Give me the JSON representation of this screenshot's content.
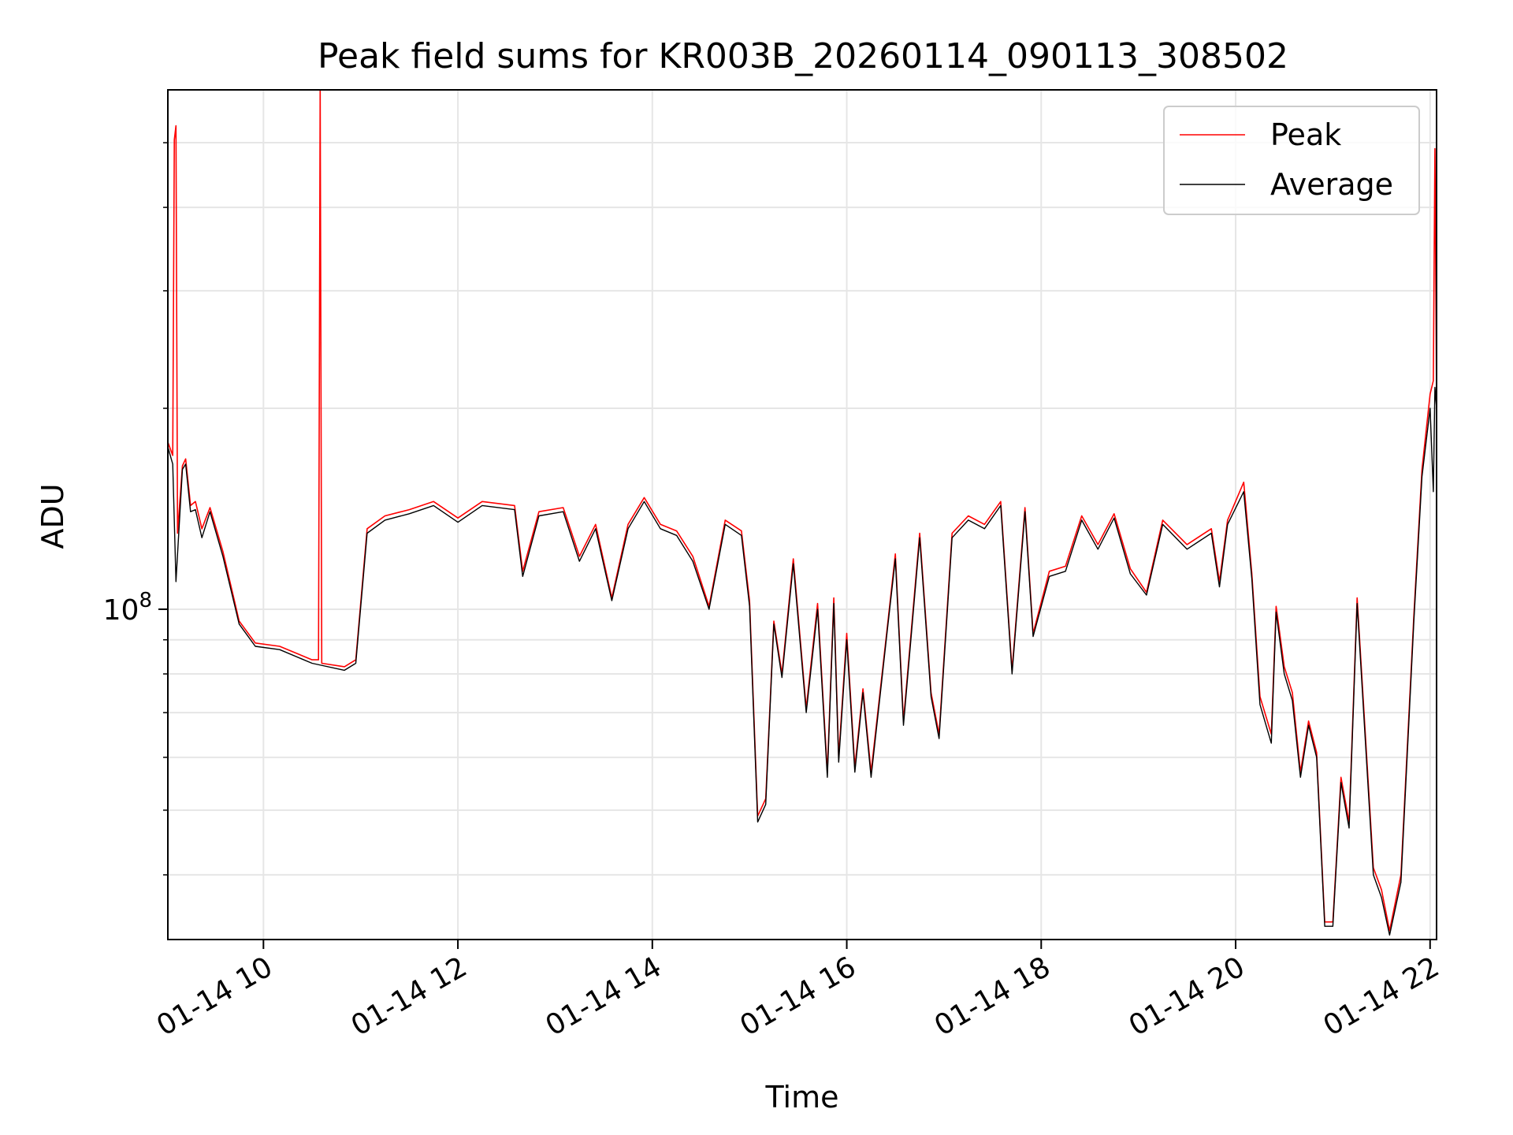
{
  "chart_data": {
    "type": "line",
    "title": "Peak field sums for KR003B_20260114_090113_308502",
    "xlabel": "Time",
    "ylabel": "ADU",
    "yscale": "log",
    "xlim": [
      "2026-01-14T09:01:00",
      "2026-01-14T22:04:00"
    ],
    "ylim": [
      32000000,
      600000000
    ],
    "xticks": [
      {
        "t": "2026-01-14T10:00",
        "label": "01-14 10"
      },
      {
        "t": "2026-01-14T12:00",
        "label": "01-14 12"
      },
      {
        "t": "2026-01-14T14:00",
        "label": "01-14 14"
      },
      {
        "t": "2026-01-14T16:00",
        "label": "01-14 16"
      },
      {
        "t": "2026-01-14T18:00",
        "label": "01-14 18"
      },
      {
        "t": "2026-01-14T20:00",
        "label": "01-14 20"
      },
      {
        "t": "2026-01-14T22:00",
        "label": "01-14 22"
      }
    ],
    "yticks_major": [
      {
        "value": 100000000,
        "label_base": "10",
        "label_exp": "8"
      }
    ],
    "yticks_minor": [
      40000000,
      50000000,
      60000000,
      70000000,
      80000000,
      90000000,
      200000000,
      300000000,
      400000000,
      500000000
    ],
    "grid": true,
    "legend": {
      "position": "top-right"
    },
    "series": [
      {
        "name": "Peak",
        "color": "#ff0000",
        "points": [
          [
            "2026-01-14T09:01",
            178000000
          ],
          [
            "2026-01-14T09:04",
            170000000
          ],
          [
            "2026-01-14T09:05",
            505000000
          ],
          [
            "2026-01-14T09:06",
            530000000
          ],
          [
            "2026-01-14T09:07",
            130000000
          ],
          [
            "2026-01-14T09:10",
            164000000
          ],
          [
            "2026-01-14T09:12",
            168000000
          ],
          [
            "2026-01-14T09:15",
            143000000
          ],
          [
            "2026-01-14T09:18",
            145000000
          ],
          [
            "2026-01-14T09:22",
            132000000
          ],
          [
            "2026-01-14T09:27",
            142000000
          ],
          [
            "2026-01-14T09:35",
            122000000
          ],
          [
            "2026-01-14T09:45",
            96000000
          ],
          [
            "2026-01-14T09:55",
            89000000
          ],
          [
            "2026-01-14T10:10",
            88000000
          ],
          [
            "2026-01-14T10:30",
            84000000
          ],
          [
            "2026-01-14T10:34",
            84000000
          ],
          [
            "2026-01-14T10:35",
            610000000
          ],
          [
            "2026-01-14T10:36",
            83000000
          ],
          [
            "2026-01-14T10:50",
            82000000
          ],
          [
            "2026-01-14T10:57",
            84000000
          ],
          [
            "2026-01-14T11:04",
            132000000
          ],
          [
            "2026-01-14T11:15",
            138000000
          ],
          [
            "2026-01-14T11:30",
            141000000
          ],
          [
            "2026-01-14T11:45",
            145000000
          ],
          [
            "2026-01-14T12:00",
            137000000
          ],
          [
            "2026-01-14T12:15",
            145000000
          ],
          [
            "2026-01-14T12:35",
            143000000
          ],
          [
            "2026-01-14T12:40",
            114000000
          ],
          [
            "2026-01-14T12:50",
            140000000
          ],
          [
            "2026-01-14T13:05",
            142000000
          ],
          [
            "2026-01-14T13:15",
            120000000
          ],
          [
            "2026-01-14T13:25",
            134000000
          ],
          [
            "2026-01-14T13:35",
            104000000
          ],
          [
            "2026-01-14T13:45",
            134000000
          ],
          [
            "2026-01-14T13:55",
            147000000
          ],
          [
            "2026-01-14T14:05",
            134000000
          ],
          [
            "2026-01-14T14:15",
            131000000
          ],
          [
            "2026-01-14T14:25",
            120000000
          ],
          [
            "2026-01-14T14:35",
            101000000
          ],
          [
            "2026-01-14T14:45",
            136000000
          ],
          [
            "2026-01-14T14:55",
            131000000
          ],
          [
            "2026-01-14T15:00",
            103000000
          ],
          [
            "2026-01-14T15:05",
            49000000
          ],
          [
            "2026-01-14T15:10",
            52000000
          ],
          [
            "2026-01-14T15:15",
            96000000
          ],
          [
            "2026-01-14T15:20",
            80000000
          ],
          [
            "2026-01-14T15:27",
            119000000
          ],
          [
            "2026-01-14T15:35",
            71000000
          ],
          [
            "2026-01-14T15:42",
            102000000
          ],
          [
            "2026-01-14T15:48",
            57000000
          ],
          [
            "2026-01-14T15:52",
            104000000
          ],
          [
            "2026-01-14T15:55",
            60000000
          ],
          [
            "2026-01-14T16:00",
            92000000
          ],
          [
            "2026-01-14T16:05",
            58000000
          ],
          [
            "2026-01-14T16:10",
            76000000
          ],
          [
            "2026-01-14T16:15",
            57000000
          ],
          [
            "2026-01-14T16:25",
            94000000
          ],
          [
            "2026-01-14T16:30",
            121000000
          ],
          [
            "2026-01-14T16:35",
            68000000
          ],
          [
            "2026-01-14T16:45",
            130000000
          ],
          [
            "2026-01-14T16:52",
            75000000
          ],
          [
            "2026-01-14T16:57",
            65000000
          ],
          [
            "2026-01-14T17:05",
            130000000
          ],
          [
            "2026-01-14T17:15",
            138000000
          ],
          [
            "2026-01-14T17:25",
            134000000
          ],
          [
            "2026-01-14T17:35",
            145000000
          ],
          [
            "2026-01-14T17:42",
            81000000
          ],
          [
            "2026-01-14T17:50",
            142000000
          ],
          [
            "2026-01-14T17:55",
            92000000
          ],
          [
            "2026-01-14T18:05",
            114000000
          ],
          [
            "2026-01-14T18:15",
            116000000
          ],
          [
            "2026-01-14T18:25",
            138000000
          ],
          [
            "2026-01-14T18:35",
            125000000
          ],
          [
            "2026-01-14T18:45",
            139000000
          ],
          [
            "2026-01-14T18:55",
            115000000
          ],
          [
            "2026-01-14T19:05",
            106000000
          ],
          [
            "2026-01-14T19:15",
            136000000
          ],
          [
            "2026-01-14T19:30",
            125000000
          ],
          [
            "2026-01-14T19:45",
            132000000
          ],
          [
            "2026-01-14T19:50",
            110000000
          ],
          [
            "2026-01-14T19:55",
            136000000
          ],
          [
            "2026-01-14T20:05",
            155000000
          ],
          [
            "2026-01-14T20:10",
            113000000
          ],
          [
            "2026-01-14T20:15",
            74000000
          ],
          [
            "2026-01-14T20:22",
            65000000
          ],
          [
            "2026-01-14T20:25",
            101000000
          ],
          [
            "2026-01-14T20:30",
            82000000
          ],
          [
            "2026-01-14T20:35",
            75000000
          ],
          [
            "2026-01-14T20:40",
            57000000
          ],
          [
            "2026-01-14T20:45",
            68000000
          ],
          [
            "2026-01-14T20:50",
            61000000
          ],
          [
            "2026-01-14T20:55",
            34000000
          ],
          [
            "2026-01-14T21:00",
            34000000
          ],
          [
            "2026-01-14T21:05",
            56000000
          ],
          [
            "2026-01-14T21:10",
            48000000
          ],
          [
            "2026-01-14T21:15",
            104000000
          ],
          [
            "2026-01-14T21:25",
            41000000
          ],
          [
            "2026-01-14T21:30",
            38000000
          ],
          [
            "2026-01-14T21:35",
            33000000
          ],
          [
            "2026-01-14T21:42",
            40000000
          ],
          [
            "2026-01-14T21:50",
            98000000
          ],
          [
            "2026-01-14T21:55",
            162000000
          ],
          [
            "2026-01-14T22:00",
            210000000
          ],
          [
            "2026-01-14T22:02",
            220000000
          ],
          [
            "2026-01-14T22:03",
            490000000
          ],
          [
            "2026-01-14T22:04",
            205000000
          ]
        ]
      },
      {
        "name": "Average",
        "color": "#000000",
        "points": [
          [
            "2026-01-14T09:01",
            175000000
          ],
          [
            "2026-01-14T09:04",
            165000000
          ],
          [
            "2026-01-14T09:06",
            110000000
          ],
          [
            "2026-01-14T09:10",
            162000000
          ],
          [
            "2026-01-14T09:12",
            165000000
          ],
          [
            "2026-01-14T09:15",
            140000000
          ],
          [
            "2026-01-14T09:18",
            141000000
          ],
          [
            "2026-01-14T09:22",
            128000000
          ],
          [
            "2026-01-14T09:27",
            140000000
          ],
          [
            "2026-01-14T09:35",
            120000000
          ],
          [
            "2026-01-14T09:45",
            95000000
          ],
          [
            "2026-01-14T09:55",
            88000000
          ],
          [
            "2026-01-14T10:10",
            87000000
          ],
          [
            "2026-01-14T10:30",
            83000000
          ],
          [
            "2026-01-14T10:50",
            81000000
          ],
          [
            "2026-01-14T10:57",
            83000000
          ],
          [
            "2026-01-14T11:04",
            130000000
          ],
          [
            "2026-01-14T11:15",
            136000000
          ],
          [
            "2026-01-14T11:30",
            139000000
          ],
          [
            "2026-01-14T11:45",
            143000000
          ],
          [
            "2026-01-14T12:00",
            135000000
          ],
          [
            "2026-01-14T12:15",
            143000000
          ],
          [
            "2026-01-14T12:35",
            141000000
          ],
          [
            "2026-01-14T12:40",
            112000000
          ],
          [
            "2026-01-14T12:50",
            138000000
          ],
          [
            "2026-01-14T13:05",
            140000000
          ],
          [
            "2026-01-14T13:15",
            118000000
          ],
          [
            "2026-01-14T13:25",
            132000000
          ],
          [
            "2026-01-14T13:35",
            103000000
          ],
          [
            "2026-01-14T13:45",
            132000000
          ],
          [
            "2026-01-14T13:55",
            145000000
          ],
          [
            "2026-01-14T14:05",
            132000000
          ],
          [
            "2026-01-14T14:15",
            129000000
          ],
          [
            "2026-01-14T14:25",
            118000000
          ],
          [
            "2026-01-14T14:35",
            100000000
          ],
          [
            "2026-01-14T14:45",
            134000000
          ],
          [
            "2026-01-14T14:55",
            129000000
          ],
          [
            "2026-01-14T15:00",
            101000000
          ],
          [
            "2026-01-14T15:05",
            48000000
          ],
          [
            "2026-01-14T15:10",
            51000000
          ],
          [
            "2026-01-14T15:15",
            95000000
          ],
          [
            "2026-01-14T15:20",
            79000000
          ],
          [
            "2026-01-14T15:27",
            117000000
          ],
          [
            "2026-01-14T15:35",
            70000000
          ],
          [
            "2026-01-14T15:42",
            100000000
          ],
          [
            "2026-01-14T15:48",
            56000000
          ],
          [
            "2026-01-14T15:52",
            102000000
          ],
          [
            "2026-01-14T15:55",
            59000000
          ],
          [
            "2026-01-14T16:00",
            90000000
          ],
          [
            "2026-01-14T16:05",
            57000000
          ],
          [
            "2026-01-14T16:10",
            75000000
          ],
          [
            "2026-01-14T16:15",
            56000000
          ],
          [
            "2026-01-14T16:25",
            93000000
          ],
          [
            "2026-01-14T16:30",
            119000000
          ],
          [
            "2026-01-14T16:35",
            67000000
          ],
          [
            "2026-01-14T16:45",
            128000000
          ],
          [
            "2026-01-14T16:52",
            74000000
          ],
          [
            "2026-01-14T16:57",
            64000000
          ],
          [
            "2026-01-14T17:05",
            128000000
          ],
          [
            "2026-01-14T17:15",
            136000000
          ],
          [
            "2026-01-14T17:25",
            132000000
          ],
          [
            "2026-01-14T17:35",
            143000000
          ],
          [
            "2026-01-14T17:42",
            80000000
          ],
          [
            "2026-01-14T17:50",
            140000000
          ],
          [
            "2026-01-14T17:55",
            91000000
          ],
          [
            "2026-01-14T18:05",
            112000000
          ],
          [
            "2026-01-14T18:15",
            114000000
          ],
          [
            "2026-01-14T18:25",
            136000000
          ],
          [
            "2026-01-14T18:35",
            123000000
          ],
          [
            "2026-01-14T18:45",
            137000000
          ],
          [
            "2026-01-14T18:55",
            113000000
          ],
          [
            "2026-01-14T19:05",
            105000000
          ],
          [
            "2026-01-14T19:15",
            134000000
          ],
          [
            "2026-01-14T19:30",
            123000000
          ],
          [
            "2026-01-14T19:45",
            130000000
          ],
          [
            "2026-01-14T19:50",
            108000000
          ],
          [
            "2026-01-14T19:55",
            134000000
          ],
          [
            "2026-01-14T20:05",
            150000000
          ],
          [
            "2026-01-14T20:10",
            111000000
          ],
          [
            "2026-01-14T20:15",
            72000000
          ],
          [
            "2026-01-14T20:22",
            63000000
          ],
          [
            "2026-01-14T20:25",
            99000000
          ],
          [
            "2026-01-14T20:30",
            80000000
          ],
          [
            "2026-01-14T20:35",
            73000000
          ],
          [
            "2026-01-14T20:40",
            56000000
          ],
          [
            "2026-01-14T20:45",
            67000000
          ],
          [
            "2026-01-14T20:50",
            60000000
          ],
          [
            "2026-01-14T20:55",
            33500000
          ],
          [
            "2026-01-14T21:00",
            33500000
          ],
          [
            "2026-01-14T21:05",
            55000000
          ],
          [
            "2026-01-14T21:10",
            47000000
          ],
          [
            "2026-01-14T21:15",
            102000000
          ],
          [
            "2026-01-14T21:25",
            40000000
          ],
          [
            "2026-01-14T21:30",
            37000000
          ],
          [
            "2026-01-14T21:35",
            32500000
          ],
          [
            "2026-01-14T21:42",
            39000000
          ],
          [
            "2026-01-14T21:50",
            96000000
          ],
          [
            "2026-01-14T21:55",
            158000000
          ],
          [
            "2026-01-14T22:00",
            200000000
          ],
          [
            "2026-01-14T22:02",
            150000000
          ],
          [
            "2026-01-14T22:03",
            215000000
          ],
          [
            "2026-01-14T22:04",
            200000000
          ]
        ]
      }
    ]
  }
}
